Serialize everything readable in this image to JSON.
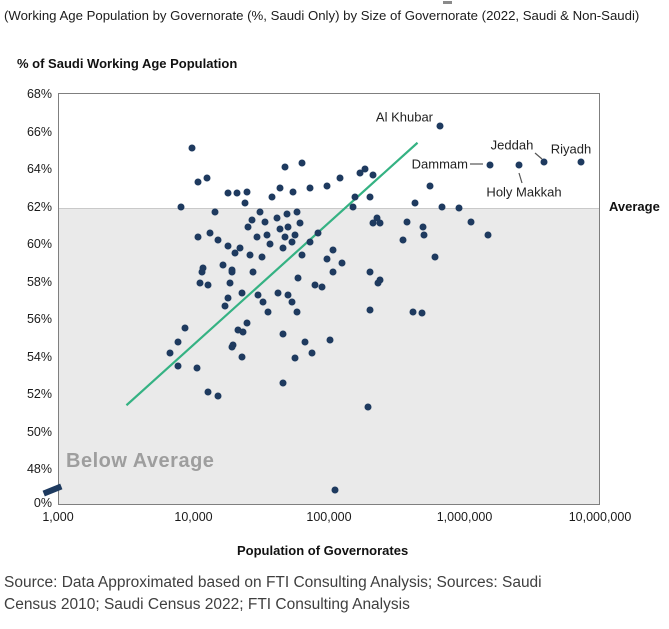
{
  "page": {
    "title": "(Working Age Population by Governorate (%, Saudi Only) by Size of Governorate (2022, Saudi & Non-Saudi)",
    "source": "Source: Data Approximated based on FTI Consulting Analysis; Sources: Saudi Census 2010; Saudi Census 2022; FTI Consulting Analysis"
  },
  "colors": {
    "dot": "#1e3a5f",
    "trend": "#35b283",
    "band": "#eaeaea",
    "average_line": "#c9c9c9",
    "plot_border": "#7f7f7f",
    "below_average_text": "#9e9e9e",
    "connector": "#555555"
  },
  "chart_data": {
    "type": "scatter",
    "title": "Working Age Population by Governorate (%, Saudi Only) by Size of Governorate (2022, Saudi & Non-Saudi)",
    "xlabel": "Population of Governorates",
    "ylabel": "% of Saudi Working Age Population",
    "x_scale": "log",
    "xlim": [
      1000,
      10000000
    ],
    "ylim": [
      48,
      68
    ],
    "x_ticks": [
      {
        "value": 1000,
        "label": "1,000"
      },
      {
        "value": 10000,
        "label": "10,000"
      },
      {
        "value": 100000,
        "label": "100,000"
      },
      {
        "value": 1000000,
        "label": "1,000,000"
      },
      {
        "value": 10000000,
        "label": "10,000,000"
      }
    ],
    "y_tick_labels": [
      "68%",
      "66%",
      "64%",
      "62%",
      "60%",
      "58%",
      "56%",
      "54%",
      "52%",
      "50%",
      "48%",
      "0%"
    ],
    "average_pct": 62,
    "average_label": "Average",
    "below_average_label": "Below Average",
    "trend_line": {
      "x1": 3200,
      "y1": 51.4,
      "x2": 450000,
      "y2": 65.4
    },
    "labeled_points": [
      {
        "name": "Al Khubar",
        "pop": 659000,
        "pct": 66.3
      },
      {
        "name": "Dammam",
        "pop": 1540000,
        "pct": 64.2
      },
      {
        "name": "Holy Makkah",
        "pop": 2520000,
        "pct": 64.2
      },
      {
        "name": "Jeddah",
        "pop": 3860000,
        "pct": 64.4
      },
      {
        "name": "Riyadh",
        "pop": 7240000,
        "pct": 64.4
      }
    ],
    "points": [
      [
        9750,
        65.1
      ],
      [
        10800,
        63.3
      ],
      [
        12600,
        63.5
      ],
      [
        18000,
        62.7
      ],
      [
        8100,
        62.0
      ],
      [
        14400,
        61.7
      ],
      [
        10800,
        60.4
      ],
      [
        13200,
        60.6
      ],
      [
        15200,
        60.2
      ],
      [
        18000,
        59.9
      ],
      [
        11750,
        58.7
      ],
      [
        16500,
        58.9
      ],
      [
        19200,
        58.6
      ],
      [
        11200,
        57.9
      ],
      [
        12800,
        57.8
      ],
      [
        11600,
        58.5
      ],
      [
        18000,
        57.1
      ],
      [
        17100,
        56.7
      ],
      [
        8650,
        55.5
      ],
      [
        7700,
        54.8
      ],
      [
        6700,
        54.2
      ],
      [
        7700,
        53.5
      ],
      [
        10600,
        53.4
      ],
      [
        12800,
        52.1
      ],
      [
        15200,
        51.9
      ],
      [
        19200,
        54.5
      ],
      [
        47300,
        64.1
      ],
      [
        63200,
        64.3
      ],
      [
        43500,
        63.0
      ],
      [
        54200,
        62.8
      ],
      [
        72400,
        63.0
      ],
      [
        96600,
        63.1
      ],
      [
        120500,
        63.5
      ],
      [
        169000,
        63.8
      ],
      [
        184500,
        64.0
      ],
      [
        211000,
        63.7
      ],
      [
        21000,
        62.7
      ],
      [
        24800,
        62.8
      ],
      [
        38000,
        62.5
      ],
      [
        24000,
        62.2
      ],
      [
        31000,
        61.7
      ],
      [
        33700,
        61.2
      ],
      [
        41300,
        61.4
      ],
      [
        49000,
        61.6
      ],
      [
        58100,
        61.7
      ],
      [
        61100,
        61.1
      ],
      [
        49800,
        60.9
      ],
      [
        43500,
        60.8
      ],
      [
        27000,
        61.3
      ],
      [
        25200,
        60.9
      ],
      [
        29400,
        60.4
      ],
      [
        34900,
        60.5
      ],
      [
        47300,
        60.4
      ],
      [
        56100,
        60.5
      ],
      [
        53300,
        60.1
      ],
      [
        45700,
        59.8
      ],
      [
        36700,
        60.0
      ],
      [
        22000,
        59.8
      ],
      [
        20200,
        59.5
      ],
      [
        26100,
        59.4
      ],
      [
        32000,
        59.3
      ],
      [
        63200,
        59.4
      ],
      [
        72400,
        60.1
      ],
      [
        83000,
        60.6
      ],
      [
        107000,
        59.7
      ],
      [
        96600,
        59.2
      ],
      [
        125000,
        59.0
      ],
      [
        156000,
        62.5
      ],
      [
        201000,
        62.5
      ],
      [
        226000,
        61.4
      ],
      [
        211000,
        61.1
      ],
      [
        150000,
        62.0
      ],
      [
        19200,
        58.5
      ],
      [
        27500,
        58.5
      ],
      [
        59000,
        58.2
      ],
      [
        107000,
        58.5
      ],
      [
        201000,
        58.5
      ],
      [
        18600,
        57.9
      ],
      [
        78900,
        57.8
      ],
      [
        88700,
        57.7
      ],
      [
        230000,
        57.9
      ],
      [
        22800,
        57.4
      ],
      [
        29900,
        57.3
      ],
      [
        42000,
        57.4
      ],
      [
        49800,
        57.3
      ],
      [
        32600,
        56.9
      ],
      [
        53300,
        56.9
      ],
      [
        35500,
        56.4
      ],
      [
        58100,
        56.4
      ],
      [
        201000,
        56.5
      ],
      [
        24800,
        55.8
      ],
      [
        21300,
        55.4
      ],
      [
        45700,
        55.2
      ],
      [
        19600,
        54.6
      ],
      [
        22800,
        54.0
      ],
      [
        66500,
        54.8
      ],
      [
        101600,
        54.9
      ],
      [
        74900,
        54.2
      ],
      [
        56100,
        53.9
      ],
      [
        45700,
        52.6
      ],
      [
        194000,
        51.3
      ],
      [
        111000,
        46.9
      ],
      [
        556000,
        63.1
      ],
      [
        431000,
        62.2
      ],
      [
        682000,
        62.0
      ],
      [
        910000,
        61.9
      ],
      [
        376000,
        61.2
      ],
      [
        238000,
        61.1
      ],
      [
        494000,
        60.9
      ],
      [
        502000,
        60.5
      ],
      [
        1120000,
        61.2
      ],
      [
        352000,
        60.2
      ],
      [
        1490000,
        60.5
      ],
      [
        605000,
        59.3
      ],
      [
        238000,
        58.1
      ],
      [
        417000,
        56.4
      ],
      [
        486000,
        56.3
      ],
      [
        23200,
        55.3
      ]
    ]
  }
}
